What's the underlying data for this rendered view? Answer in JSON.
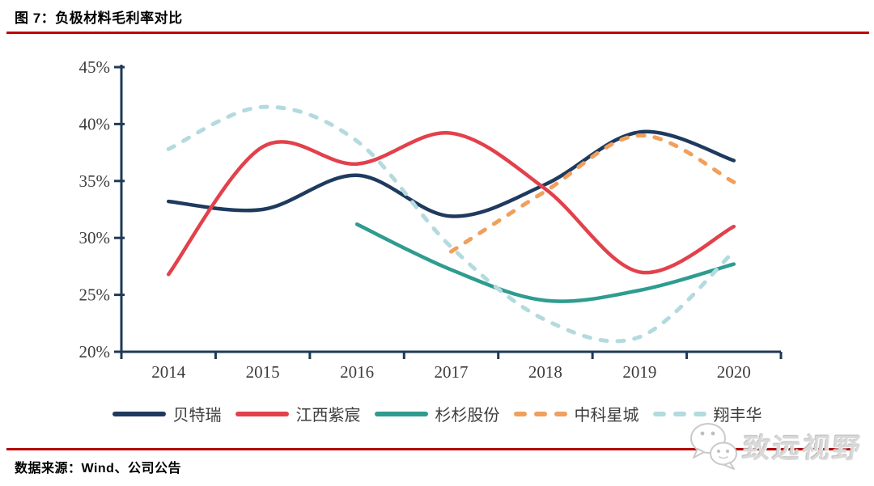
{
  "header": {
    "title": "图 7：负极材料毛利率对比"
  },
  "footer": {
    "source": "数据来源：Wind、公司公告",
    "watermark": "致远视野",
    "watermark_logo": "wechat-bubbles-icon"
  },
  "colors": {
    "accent_rule_red": "#C00000",
    "axis": "#1E3A56",
    "tick_label": "#3d3d3d"
  },
  "chart_data": {
    "type": "line",
    "title": "负极材料毛利率对比",
    "categories": [
      "2014",
      "2015",
      "2016",
      "2017",
      "2018",
      "2019",
      "2020"
    ],
    "xlabel": "",
    "ylabel": "",
    "ylim": [
      20,
      45
    ],
    "y_tick_step": 5,
    "y_tick_suffix": "%",
    "grid": false,
    "smooth": true,
    "legend_position": "bottom",
    "series": [
      {
        "name": "贝特瑞",
        "color": "#1F3A5F",
        "dash": "solid",
        "values": [
          33.2,
          32.5,
          35.5,
          31.9,
          34.7,
          39.3,
          36.8
        ]
      },
      {
        "name": "江西紫宸",
        "color": "#E2414B",
        "dash": "solid",
        "values": [
          26.8,
          38.0,
          36.5,
          39.2,
          34.3,
          27.0,
          31.0
        ]
      },
      {
        "name": "杉杉股份",
        "color": "#2E9C8F",
        "dash": "solid",
        "values": [
          null,
          null,
          31.2,
          27.2,
          24.5,
          25.4,
          27.7
        ]
      },
      {
        "name": "中科星城",
        "color": "#F0A05C",
        "dash": "dashed",
        "values": [
          null,
          null,
          null,
          28.8,
          34.1,
          39.0,
          34.9
        ]
      },
      {
        "name": "翔丰华",
        "color": "#B3DBDF",
        "dash": "dashed",
        "values": [
          37.8,
          41.5,
          38.5,
          29.2,
          22.8,
          21.3,
          28.8
        ]
      }
    ]
  }
}
